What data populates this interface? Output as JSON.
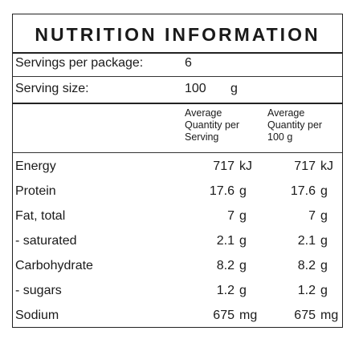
{
  "label": {
    "title": "NUTRITION INFORMATION",
    "servings_label": "Servings per package:",
    "servings_value": "6",
    "serving_size_label": "Serving size:",
    "serving_size_value": "100",
    "serving_size_unit": "g",
    "col_per_serving": "Average Quantity per Serving",
    "col_per_100g": "Average Quantity per 100 g",
    "col_per_serving_lines": [
      "Average",
      "Quantity per",
      "Serving"
    ],
    "col_per_100g_lines": [
      "Average",
      "Quantity per",
      "100 g"
    ],
    "rows": [
      {
        "name": "Energy",
        "serving_value": "717",
        "serving_unit": "kJ",
        "per100_value": "717",
        "per100_unit": "kJ"
      },
      {
        "name": "Protein",
        "serving_value": "17.6",
        "serving_unit": "g",
        "per100_value": "17.6",
        "per100_unit": "g"
      },
      {
        "name": "Fat, total",
        "serving_value": "7",
        "serving_unit": "g",
        "per100_value": "7",
        "per100_unit": "g"
      },
      {
        "name": "- saturated",
        "serving_value": "2.1",
        "serving_unit": "g",
        "per100_value": "2.1",
        "per100_unit": "g"
      },
      {
        "name": "Carbohydrate",
        "serving_value": "8.2",
        "serving_unit": "g",
        "per100_value": "8.2",
        "per100_unit": "g"
      },
      {
        "name": "- sugars",
        "serving_value": "1.2",
        "serving_unit": "g",
        "per100_value": "1.2",
        "per100_unit": "g"
      },
      {
        "name": "Sodium",
        "serving_value": "675",
        "serving_unit": "mg",
        "per100_value": "675",
        "per100_unit": "mg"
      }
    ]
  }
}
